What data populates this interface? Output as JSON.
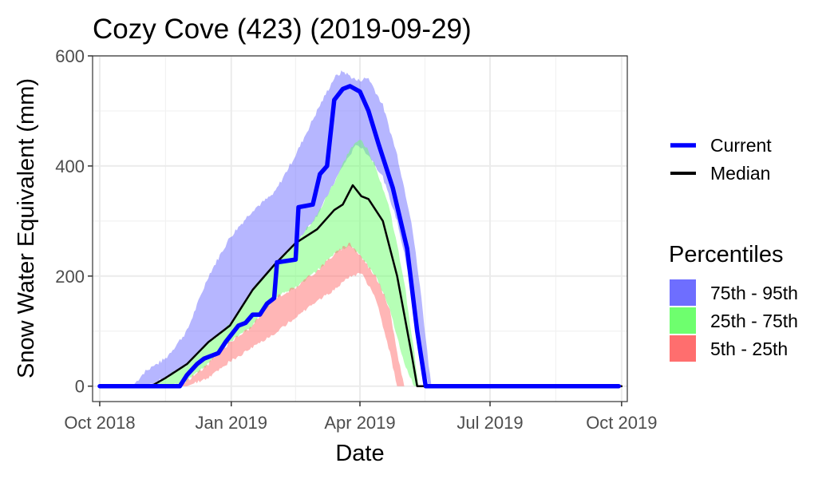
{
  "chart_data": {
    "type": "area",
    "title": "Cozy Cove (423) (2019-09-29)",
    "xlabel": "Date",
    "ylabel": "Snow Water Equivalent (mm)",
    "x_range": [
      "2018-09-26",
      "2019-10-05"
    ],
    "ylim": [
      -28,
      600
    ],
    "grid": true,
    "x_ticks": [
      {
        "date": "2018-10-01",
        "label": "Oct 2018"
      },
      {
        "date": "2019-01-01",
        "label": "Jan 2019"
      },
      {
        "date": "2019-04-01",
        "label": "Apr 2019"
      },
      {
        "date": "2019-07-01",
        "label": "Jul 2019"
      },
      {
        "date": "2019-10-01",
        "label": "Oct 2019"
      }
    ],
    "y_ticks": [
      0,
      200,
      400,
      600
    ],
    "bands": [
      {
        "name": "75th - 95th",
        "color": "#6e6eff",
        "opacity": 0.5,
        "points": [
          {
            "x": "2018-10-01",
            "lo": 0,
            "hi": 0
          },
          {
            "x": "2018-10-24",
            "lo": 0,
            "hi": 0
          },
          {
            "x": "2018-11-01",
            "lo": 0,
            "hi": 25
          },
          {
            "x": "2018-11-16",
            "lo": 15,
            "hi": 50
          },
          {
            "x": "2018-12-01",
            "lo": 40,
            "hi": 100
          },
          {
            "x": "2018-12-16",
            "lo": 80,
            "hi": 200
          },
          {
            "x": "2018-12-31",
            "lo": 110,
            "hi": 270
          },
          {
            "x": "2019-01-16",
            "lo": 175,
            "hi": 320
          },
          {
            "x": "2019-01-31",
            "lo": 220,
            "hi": 350
          },
          {
            "x": "2019-02-15",
            "lo": 260,
            "hi": 420
          },
          {
            "x": "2019-03-02",
            "lo": 310,
            "hi": 500
          },
          {
            "x": "2019-03-14",
            "lo": 370,
            "hi": 560
          },
          {
            "x": "2019-03-20",
            "lo": 400,
            "hi": 572
          },
          {
            "x": "2019-03-30",
            "lo": 440,
            "hi": 555
          },
          {
            "x": "2019-04-07",
            "lo": 420,
            "hi": 560
          },
          {
            "x": "2019-04-17",
            "lo": 380,
            "hi": 510
          },
          {
            "x": "2019-04-27",
            "lo": 300,
            "hi": 420
          },
          {
            "x": "2019-05-07",
            "lo": 180,
            "hi": 300
          },
          {
            "x": "2019-05-14",
            "lo": 60,
            "hi": 160
          },
          {
            "x": "2019-05-19",
            "lo": 0,
            "hi": 40
          },
          {
            "x": "2019-05-21",
            "lo": 0,
            "hi": 0
          },
          {
            "x": "2019-10-01",
            "lo": 0,
            "hi": 0
          }
        ]
      },
      {
        "name": "25th - 75th",
        "color": "#6eff6e",
        "opacity": 0.5,
        "points": [
          {
            "x": "2018-10-01",
            "lo": 0,
            "hi": 0
          },
          {
            "x": "2018-11-06",
            "lo": 0,
            "hi": 0
          },
          {
            "x": "2018-11-16",
            "lo": 0,
            "hi": 15
          },
          {
            "x": "2018-12-01",
            "lo": 10,
            "hi": 40
          },
          {
            "x": "2018-12-16",
            "lo": 40,
            "hi": 80
          },
          {
            "x": "2018-12-31",
            "lo": 80,
            "hi": 110
          },
          {
            "x": "2019-01-16",
            "lo": 110,
            "hi": 175
          },
          {
            "x": "2019-01-31",
            "lo": 160,
            "hi": 220
          },
          {
            "x": "2019-02-15",
            "lo": 180,
            "hi": 260
          },
          {
            "x": "2019-03-02",
            "lo": 210,
            "hi": 310
          },
          {
            "x": "2019-03-14",
            "lo": 240,
            "hi": 370
          },
          {
            "x": "2019-03-25",
            "lo": 255,
            "hi": 430
          },
          {
            "x": "2019-04-02",
            "lo": 235,
            "hi": 450
          },
          {
            "x": "2019-04-12",
            "lo": 200,
            "hi": 400
          },
          {
            "x": "2019-04-22",
            "lo": 140,
            "hi": 320
          },
          {
            "x": "2019-05-02",
            "lo": 40,
            "hi": 190
          },
          {
            "x": "2019-05-09",
            "lo": 0,
            "hi": 60
          },
          {
            "x": "2019-05-12",
            "lo": 0,
            "hi": 0
          },
          {
            "x": "2019-10-01",
            "lo": 0,
            "hi": 0
          }
        ]
      },
      {
        "name": "5th - 25th",
        "color": "#ff6e6e",
        "opacity": 0.5,
        "points": [
          {
            "x": "2018-10-01",
            "lo": 0,
            "hi": 0
          },
          {
            "x": "2018-11-26",
            "lo": 0,
            "hi": 0
          },
          {
            "x": "2018-12-01",
            "lo": 0,
            "hi": 10
          },
          {
            "x": "2018-12-16",
            "lo": 15,
            "hi": 40
          },
          {
            "x": "2018-12-31",
            "lo": 45,
            "hi": 80
          },
          {
            "x": "2019-01-16",
            "lo": 70,
            "hi": 110
          },
          {
            "x": "2019-01-31",
            "lo": 95,
            "hi": 160
          },
          {
            "x": "2019-02-15",
            "lo": 125,
            "hi": 180
          },
          {
            "x": "2019-03-02",
            "lo": 155,
            "hi": 210
          },
          {
            "x": "2019-03-14",
            "lo": 175,
            "hi": 240
          },
          {
            "x": "2019-03-25",
            "lo": 200,
            "hi": 260
          },
          {
            "x": "2019-04-02",
            "lo": 205,
            "hi": 235
          },
          {
            "x": "2019-04-12",
            "lo": 160,
            "hi": 200
          },
          {
            "x": "2019-04-22",
            "lo": 60,
            "hi": 140
          },
          {
            "x": "2019-04-27",
            "lo": 0,
            "hi": 60
          },
          {
            "x": "2019-05-02",
            "lo": 0,
            "hi": 0
          },
          {
            "x": "2019-10-01",
            "lo": 0,
            "hi": 0
          }
        ]
      }
    ],
    "series": [
      {
        "name": "Median",
        "color": "#000000",
        "points": [
          {
            "x": "2018-10-01",
            "y": 0
          },
          {
            "x": "2018-11-06",
            "y": 0
          },
          {
            "x": "2018-11-16",
            "y": 15
          },
          {
            "x": "2018-12-01",
            "y": 40
          },
          {
            "x": "2018-12-16",
            "y": 80
          },
          {
            "x": "2018-12-31",
            "y": 110
          },
          {
            "x": "2019-01-16",
            "y": 175
          },
          {
            "x": "2019-01-31",
            "y": 220
          },
          {
            "x": "2019-02-15",
            "y": 260
          },
          {
            "x": "2019-03-02",
            "y": 285
          },
          {
            "x": "2019-03-14",
            "y": 320
          },
          {
            "x": "2019-03-20",
            "y": 330
          },
          {
            "x": "2019-03-27",
            "y": 365
          },
          {
            "x": "2019-04-02",
            "y": 345
          },
          {
            "x": "2019-04-07",
            "y": 340
          },
          {
            "x": "2019-04-17",
            "y": 300
          },
          {
            "x": "2019-04-27",
            "y": 200
          },
          {
            "x": "2019-05-07",
            "y": 60
          },
          {
            "x": "2019-05-11",
            "y": 0
          },
          {
            "x": "2019-10-01",
            "y": 0
          }
        ]
      },
      {
        "name": "Current",
        "color": "#0000ff",
        "points": [
          {
            "x": "2018-10-01",
            "y": 0
          },
          {
            "x": "2018-11-26",
            "y": 0
          },
          {
            "x": "2018-12-01",
            "y": 20
          },
          {
            "x": "2018-12-08",
            "y": 40
          },
          {
            "x": "2018-12-13",
            "y": 50
          },
          {
            "x": "2018-12-23",
            "y": 60
          },
          {
            "x": "2018-12-28",
            "y": 80
          },
          {
            "x": "2019-01-06",
            "y": 110
          },
          {
            "x": "2019-01-11",
            "y": 115
          },
          {
            "x": "2019-01-16",
            "y": 130
          },
          {
            "x": "2019-01-21",
            "y": 130
          },
          {
            "x": "2019-01-26",
            "y": 150
          },
          {
            "x": "2019-01-31",
            "y": 160
          },
          {
            "x": "2019-02-02",
            "y": 225
          },
          {
            "x": "2019-02-15",
            "y": 230
          },
          {
            "x": "2019-02-17",
            "y": 325
          },
          {
            "x": "2019-02-27",
            "y": 330
          },
          {
            "x": "2019-03-04",
            "y": 385
          },
          {
            "x": "2019-03-09",
            "y": 400
          },
          {
            "x": "2019-03-14",
            "y": 520
          },
          {
            "x": "2019-03-20",
            "y": 540
          },
          {
            "x": "2019-03-25",
            "y": 545
          },
          {
            "x": "2019-04-01",
            "y": 535
          },
          {
            "x": "2019-04-07",
            "y": 500
          },
          {
            "x": "2019-04-14",
            "y": 440
          },
          {
            "x": "2019-04-24",
            "y": 360
          },
          {
            "x": "2019-05-04",
            "y": 250
          },
          {
            "x": "2019-05-11",
            "y": 100
          },
          {
            "x": "2019-05-17",
            "y": 0
          },
          {
            "x": "2019-09-29",
            "y": 0
          }
        ]
      }
    ],
    "legend": {
      "placement": "right",
      "lines": [
        {
          "label": "Current",
          "color": "#0000ff"
        },
        {
          "label": "Median",
          "color": "#000000"
        }
      ],
      "fill_title": "Percentiles",
      "fills": [
        {
          "label": "75th - 95th",
          "color": "#6e6eff"
        },
        {
          "label": "25th - 75th",
          "color": "#6eff6e"
        },
        {
          "label": "5th - 25th",
          "color": "#ff6e6e"
        }
      ]
    }
  }
}
